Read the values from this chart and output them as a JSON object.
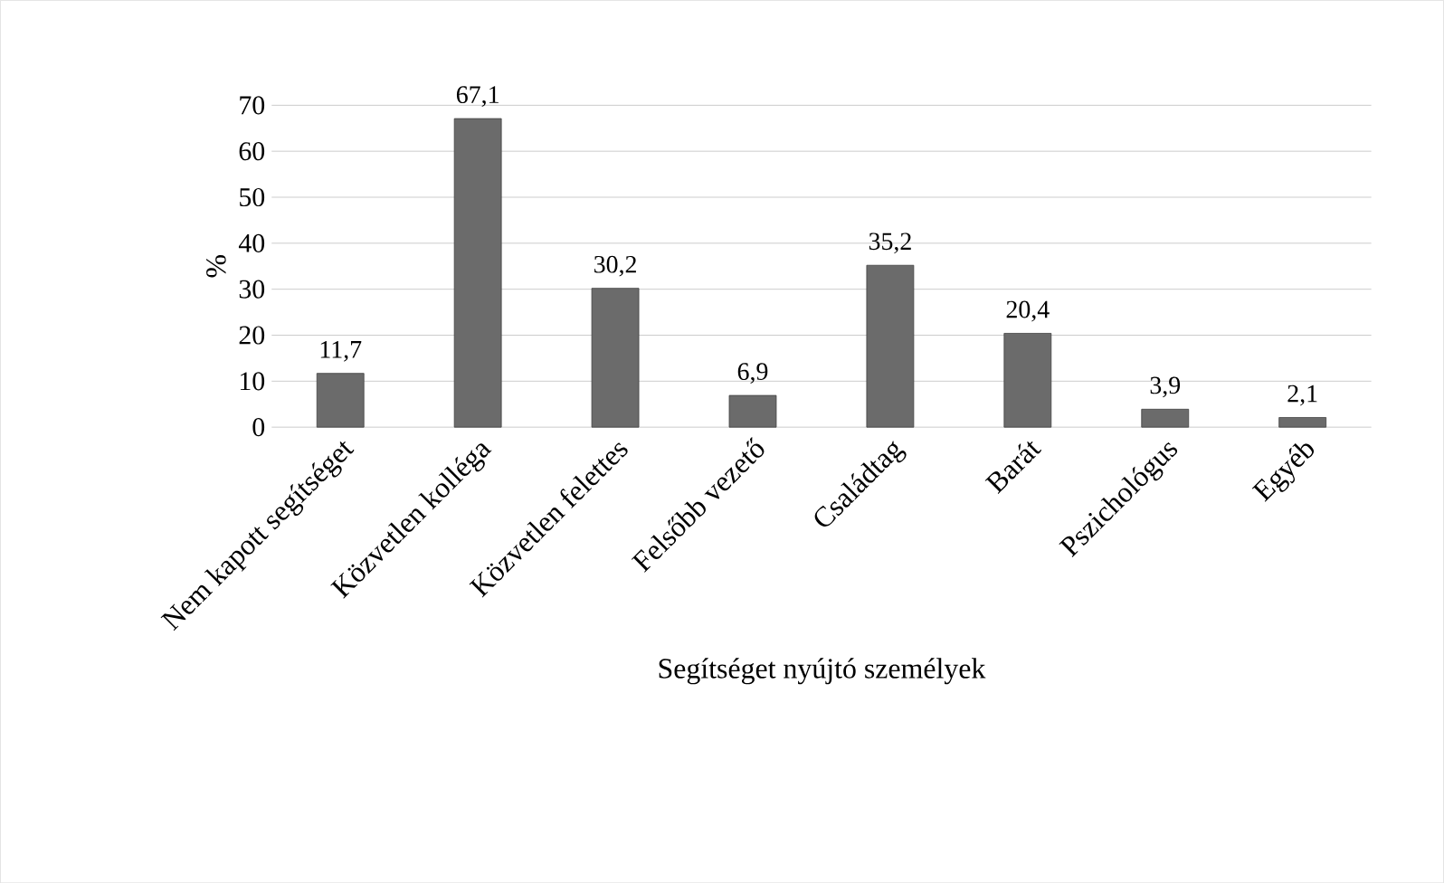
{
  "chart_data": {
    "type": "bar",
    "ylabel": "%",
    "xlabel": "Segítséget nyújtó személyek",
    "categories": [
      "Nem kapott segítséget",
      "Közvetlen kolléga",
      "Közvetlen felettes",
      "Felsőbb vezető",
      "Családtag",
      "Barát",
      "Pszichológus",
      "Egyéb"
    ],
    "values": [
      11.7,
      67.1,
      30.2,
      6.9,
      35.2,
      20.4,
      3.9,
      2.1
    ],
    "color": "#6b6b6b",
    "ylim": [
      0,
      70
    ],
    "yticks": [
      0,
      10,
      20,
      30,
      40,
      50,
      60,
      70
    ],
    "value_labels": [
      "11,7",
      "67,1",
      "30,2",
      "6,9",
      "35,2",
      "20,4",
      "3,9",
      "2,1"
    ],
    "grid": "y"
  }
}
